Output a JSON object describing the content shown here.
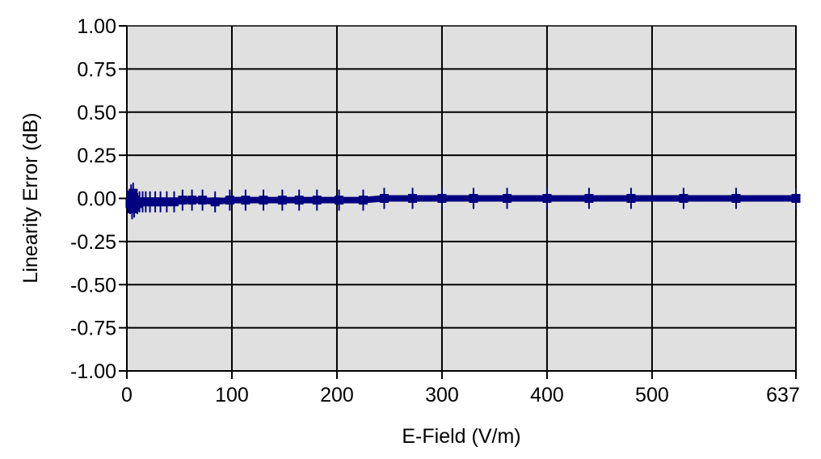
{
  "chart_data": {
    "type": "line",
    "title": "",
    "xlabel": "E-Field (V/m)",
    "ylabel": "Linearity Error (dB)",
    "xlim": [
      0,
      637
    ],
    "ylim": [
      -1.0,
      1.0
    ],
    "x_ticks": [
      0,
      100,
      200,
      300,
      400,
      500,
      637
    ],
    "x_tick_labels": [
      "0",
      "100",
      "200",
      "300",
      "400",
      "500",
      "637"
    ],
    "y_ticks": [
      1.0,
      0.75,
      0.5,
      0.25,
      0.0,
      -0.25,
      -0.5,
      -0.75,
      -1.0
    ],
    "y_tick_labels": [
      "1.00",
      "0.75",
      "0.50",
      "0.25",
      "0.00",
      "-0.25",
      "-0.50",
      "-0.75",
      "-1.00"
    ],
    "grid": true,
    "legend": "none",
    "series": [
      {
        "x": [
          3,
          4,
          5,
          6,
          7,
          8,
          10,
          12,
          15,
          18,
          22,
          27,
          32,
          38,
          45,
          53,
          62,
          72,
          84,
          98,
          113,
          130,
          148,
          164,
          181,
          202,
          225,
          245,
          272,
          300,
          330,
          362,
          400,
          440,
          480,
          530,
          580,
          637
        ],
        "y": [
          -0.03,
          0.02,
          -0.06,
          0.03,
          -0.05,
          -0.01,
          -0.03,
          -0.02,
          -0.02,
          -0.02,
          -0.02,
          -0.02,
          -0.02,
          -0.02,
          -0.02,
          -0.01,
          -0.01,
          -0.01,
          -0.02,
          -0.01,
          -0.01,
          -0.01,
          -0.01,
          -0.01,
          -0.01,
          -0.01,
          -0.01,
          0.0,
          0.0,
          0.0,
          0.0,
          0.0,
          0.0,
          0.0,
          0.0,
          0.0,
          0.0,
          0.0
        ]
      }
    ],
    "colors": {
      "plot_background": "#e0e0e0",
      "series": "#000080",
      "grid": "#000000"
    }
  }
}
